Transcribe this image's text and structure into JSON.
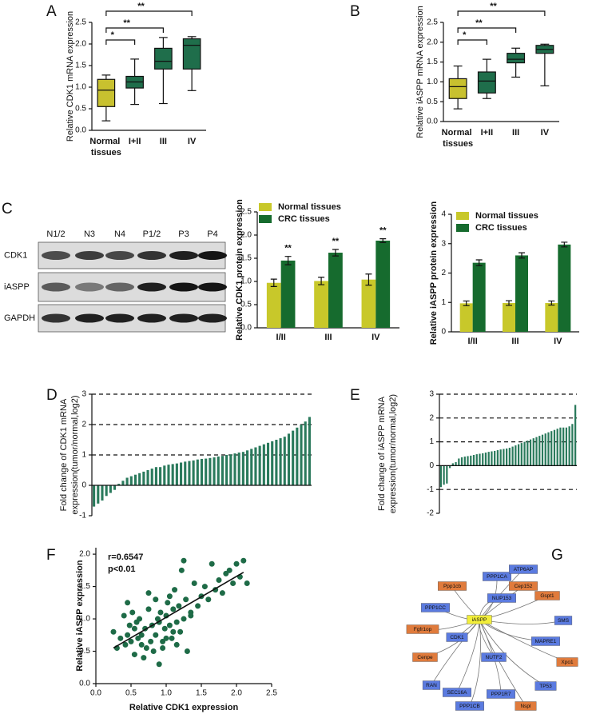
{
  "chart_data": [
    {
      "panel": "A",
      "type": "box",
      "ylabel": "Relative CDK1 mRNA expression",
      "categories": [
        "Normal tissues",
        "I+II",
        "III",
        "IV"
      ],
      "colors": [
        "#c8c12f",
        "#1f6e4b",
        "#1f6e4b",
        "#1f6e4b"
      ],
      "boxes": [
        {
          "min": 0.22,
          "q1": 0.55,
          "median": 0.93,
          "q3": 1.18,
          "max": 1.28
        },
        {
          "min": 0.6,
          "q1": 0.98,
          "median": 1.12,
          "q3": 1.25,
          "max": 1.65
        },
        {
          "min": 0.62,
          "q1": 1.42,
          "median": 1.6,
          "q3": 1.9,
          "max": 2.15
        },
        {
          "min": 0.92,
          "q1": 1.42,
          "median": 1.97,
          "q3": 2.12,
          "max": 2.17
        }
      ],
      "ylim": [
        0,
        2.5
      ],
      "yticks": [
        {
          "value": 0,
          "label": "0.0"
        },
        0.5,
        {
          "value": 1,
          "label": "1.0"
        },
        1.5,
        {
          "value": 2,
          "label": "2.0"
        },
        2.5
      ],
      "annotations": [
        "*",
        "**",
        "**"
      ]
    },
    {
      "panel": "B",
      "type": "box",
      "ylabel": "Relative iASPP mRNA expression",
      "categories": [
        "Normal tissues",
        "I+II",
        "III",
        "IV"
      ],
      "colors": [
        "#c8c12f",
        "#1f6e4b",
        "#1f6e4b",
        "#1f6e4b"
      ],
      "boxes": [
        {
          "min": 0.32,
          "q1": 0.58,
          "median": 0.88,
          "q3": 1.08,
          "max": 1.4
        },
        {
          "min": 0.58,
          "q1": 0.72,
          "median": 1.02,
          "q3": 1.25,
          "max": 1.57
        },
        {
          "min": 1.12,
          "q1": 1.48,
          "median": 1.57,
          "q3": 1.72,
          "max": 1.85
        },
        {
          "min": 0.9,
          "q1": 1.72,
          "median": 1.82,
          "q3": 1.92,
          "max": 1.95
        }
      ],
      "ylim": [
        0,
        2.5
      ],
      "yticks": [
        {
          "value": 0,
          "label": "0.0"
        },
        0.5,
        {
          "value": 1,
          "label": "1.0"
        },
        1.5,
        {
          "value": 2,
          "label": "2.0"
        },
        2.5
      ],
      "annotations": [
        "*",
        "**",
        "**"
      ]
    },
    {
      "type": "bar",
      "ylabel": "Relative CDK1 protein expression",
      "categories": [
        "I/II",
        "III",
        "IV"
      ],
      "series": [
        {
          "name": "Normal tissues",
          "color": "#c8c82a",
          "values": [
            0.97,
            1.01,
            1.04
          ],
          "errors": [
            0.08,
            0.08,
            0.12
          ]
        },
        {
          "name": "CRC tissues",
          "color": "#166b2e",
          "values": [
            1.45,
            1.62,
            1.88
          ],
          "errors": [
            0.09,
            0.07,
            0.04
          ]
        }
      ],
      "ylim": [
        0,
        2.5
      ],
      "yticks": [
        {
          "value": 0,
          "label": "0.0"
        },
        0.5,
        {
          "value": 1,
          "label": "1.0"
        },
        1.5,
        {
          "value": 2,
          "label": "2.0"
        },
        2.5
      ],
      "annotations": [
        "**",
        "**",
        "**"
      ],
      "legend": "upper left"
    },
    {
      "type": "bar",
      "ylabel": "Relative iASPP protein expression",
      "categories": [
        "I/II",
        "III",
        "IV"
      ],
      "series": [
        {
          "name": "Normal tissues",
          "color": "#c8c82a",
          "values": [
            0.97,
            0.98,
            0.98
          ],
          "errors": [
            0.08,
            0.08,
            0.07
          ]
        },
        {
          "name": "CRC tissues",
          "color": "#166b2e",
          "values": [
            2.35,
            2.6,
            2.97
          ],
          "errors": [
            0.1,
            0.09,
            0.08
          ]
        }
      ],
      "ylim": [
        0,
        4
      ],
      "yticks": [
        0,
        1,
        2,
        3,
        4
      ],
      "legend": "upper left"
    },
    {
      "panel": "D",
      "type": "bar",
      "ylabel": [
        "Fold change of CDK1 mRNA",
        "expression(tumor/normal,log2)"
      ],
      "values": [
        -0.7,
        -0.6,
        -0.5,
        -0.35,
        -0.25,
        -0.15,
        0.05,
        0.15,
        0.25,
        0.3,
        0.35,
        0.4,
        0.45,
        0.5,
        0.55,
        0.6,
        0.6,
        0.65,
        0.68,
        0.7,
        0.72,
        0.75,
        0.78,
        0.8,
        0.82,
        0.85,
        0.87,
        0.88,
        0.9,
        0.92,
        0.95,
        0.97,
        1.0,
        1.02,
        1.05,
        1.08,
        1.1,
        1.15,
        1.2,
        1.25,
        1.3,
        1.35,
        1.4,
        1.45,
        1.5,
        1.55,
        1.6,
        1.7,
        1.8,
        1.9,
        2.0,
        2.1,
        2.25
      ],
      "color": "#2a7a5c",
      "ylim": [
        -1,
        3
      ],
      "yticks": [
        -1,
        0,
        1,
        2,
        3
      ],
      "ref_lines": [
        1,
        2,
        3
      ]
    },
    {
      "panel": "E",
      "type": "bar",
      "ylabel": [
        "Fold change of iASPP mRNA",
        "expression(tumor/normal,log2)"
      ],
      "values": [
        -0.9,
        -0.8,
        -0.75,
        -0.1,
        0.1,
        0.15,
        0.3,
        0.35,
        0.38,
        0.4,
        0.42,
        0.45,
        0.48,
        0.5,
        0.52,
        0.55,
        0.58,
        0.6,
        0.62,
        0.65,
        0.68,
        0.7,
        0.72,
        0.75,
        0.8,
        0.85,
        0.9,
        0.95,
        1.0,
        1.05,
        1.1,
        1.15,
        1.2,
        1.25,
        1.3,
        1.35,
        1.4,
        1.45,
        1.5,
        1.55,
        1.6,
        1.6,
        1.6,
        1.65,
        1.75,
        2.55
      ],
      "color": "#2a7a5c",
      "ylim": [
        -2,
        3
      ],
      "yticks": [
        -2,
        -1,
        0,
        1,
        2,
        3
      ],
      "ref_lines": [
        -1,
        1,
        2,
        3
      ]
    },
    {
      "panel": "F",
      "type": "scatter",
      "xlabel": "Relative CDK1 expression",
      "ylabel": "Relative iASPP expression",
      "x": [
        0.25,
        0.3,
        0.35,
        0.4,
        0.42,
        0.45,
        0.48,
        0.5,
        0.52,
        0.55,
        0.58,
        0.6,
        0.62,
        0.65,
        0.68,
        0.7,
        0.72,
        0.75,
        0.78,
        0.8,
        0.82,
        0.85,
        0.88,
        0.9,
        0.92,
        0.95,
        0.98,
        1.0,
        1.02,
        1.05,
        1.08,
        1.1,
        1.12,
        1.15,
        1.18,
        1.2,
        1.22,
        1.25,
        1.28,
        1.3,
        1.35,
        1.4,
        1.45,
        1.5,
        1.55,
        1.6,
        1.65,
        1.7,
        1.75,
        1.8,
        1.85,
        1.9,
        1.95,
        2.0,
        2.05,
        2.1,
        2.15,
        0.55,
        0.75,
        0.95,
        1.05,
        1.15,
        1.25,
        0.65,
        0.85,
        1.35,
        0.45,
        0.9,
        1.0,
        1.1
      ],
      "y": [
        0.8,
        0.55,
        0.7,
        1.05,
        0.6,
        1.25,
        0.9,
        0.65,
        1.1,
        0.45,
        0.95,
        0.7,
        1.0,
        0.75,
        0.4,
        0.85,
        0.55,
        1.4,
        0.65,
        0.9,
        0.5,
        0.75,
        1.0,
        0.3,
        1.1,
        0.65,
        0.85,
        1.05,
        1.25,
        0.9,
        0.7,
        1.15,
        1.45,
        0.6,
        1.2,
        0.8,
        1.75,
        1.0,
        1.3,
        0.5,
        1.1,
        1.55,
        1.2,
        1.35,
        1.5,
        1.3,
        1.85,
        1.45,
        1.6,
        1.4,
        1.7,
        1.75,
        1.55,
        1.85,
        1.65,
        1.9,
        1.55,
        0.85,
        1.15,
        0.55,
        1.35,
        0.95,
        1.9,
        0.6,
        1.3,
        1.05,
        0.75,
        0.95,
        0.7,
        0.8
      ],
      "color": "#1e6b47",
      "fit_line": {
        "x": [
          0.25,
          2.1
        ],
        "y": [
          0.55,
          1.72
        ]
      },
      "annotations": [
        "r=0.6547",
        "p<0.01"
      ],
      "xlim": [
        0,
        2.5
      ],
      "xticks": [
        {
          "value": 0,
          "label": "0.0"
        },
        0.5,
        {
          "value": 1,
          "label": "1.0"
        },
        1.5,
        {
          "value": 2,
          "label": "2.0"
        },
        2.5
      ],
      "ylim": [
        0,
        2.1
      ],
      "yticks": [
        {
          "value": 0,
          "label": "0.0"
        },
        0.5,
        {
          "value": 1,
          "label": "1.0"
        },
        1.5,
        {
          "value": 2,
          "label": "2.0"
        }
      ]
    }
  ],
  "blot": {
    "panel": "C",
    "lanes": [
      "N1/2",
      "N3",
      "N4",
      "P1/2",
      "P3",
      "P4"
    ],
    "rows": [
      "CDK1",
      "iASPP",
      "GAPDH"
    ]
  },
  "network": {
    "panel": "G",
    "center": "iASPP",
    "nodes": [
      {
        "label": "Ppp1cb",
        "color": "#e07b3c"
      },
      {
        "label": "PPP1CA",
        "color": "#5b7be0"
      },
      {
        "label": "ATP6AP",
        "color": "#5b7be0"
      },
      {
        "label": "Cep152",
        "color": "#e07b3c"
      },
      {
        "label": "Gspt1",
        "color": "#e07b3c"
      },
      {
        "label": "PPP1CC",
        "color": "#5b7be0"
      },
      {
        "label": "NUP153",
        "color": "#5b7be0"
      },
      {
        "label": "SMS",
        "color": "#5b7be0"
      },
      {
        "label": "Fgfr1op",
        "color": "#e07b3c"
      },
      {
        "label": "CDK1",
        "color": "#5b7be0"
      },
      {
        "label": "MAPRE1",
        "color": "#5b7be0"
      },
      {
        "label": "Cenpe",
        "color": "#e07b3c"
      },
      {
        "label": "NUTF2",
        "color": "#5b7be0"
      },
      {
        "label": "Xpo1",
        "color": "#e07b3c"
      },
      {
        "label": "RAN",
        "color": "#5b7be0"
      },
      {
        "label": "SEC16A",
        "color": "#5b7be0"
      },
      {
        "label": "TP53",
        "color": "#5b7be0"
      },
      {
        "label": "PPP1R7",
        "color": "#5b7be0"
      },
      {
        "label": "Nspl",
        "color": "#e07b3c"
      },
      {
        "label": "PPP1CB",
        "color": "#5b7be0"
      }
    ]
  }
}
